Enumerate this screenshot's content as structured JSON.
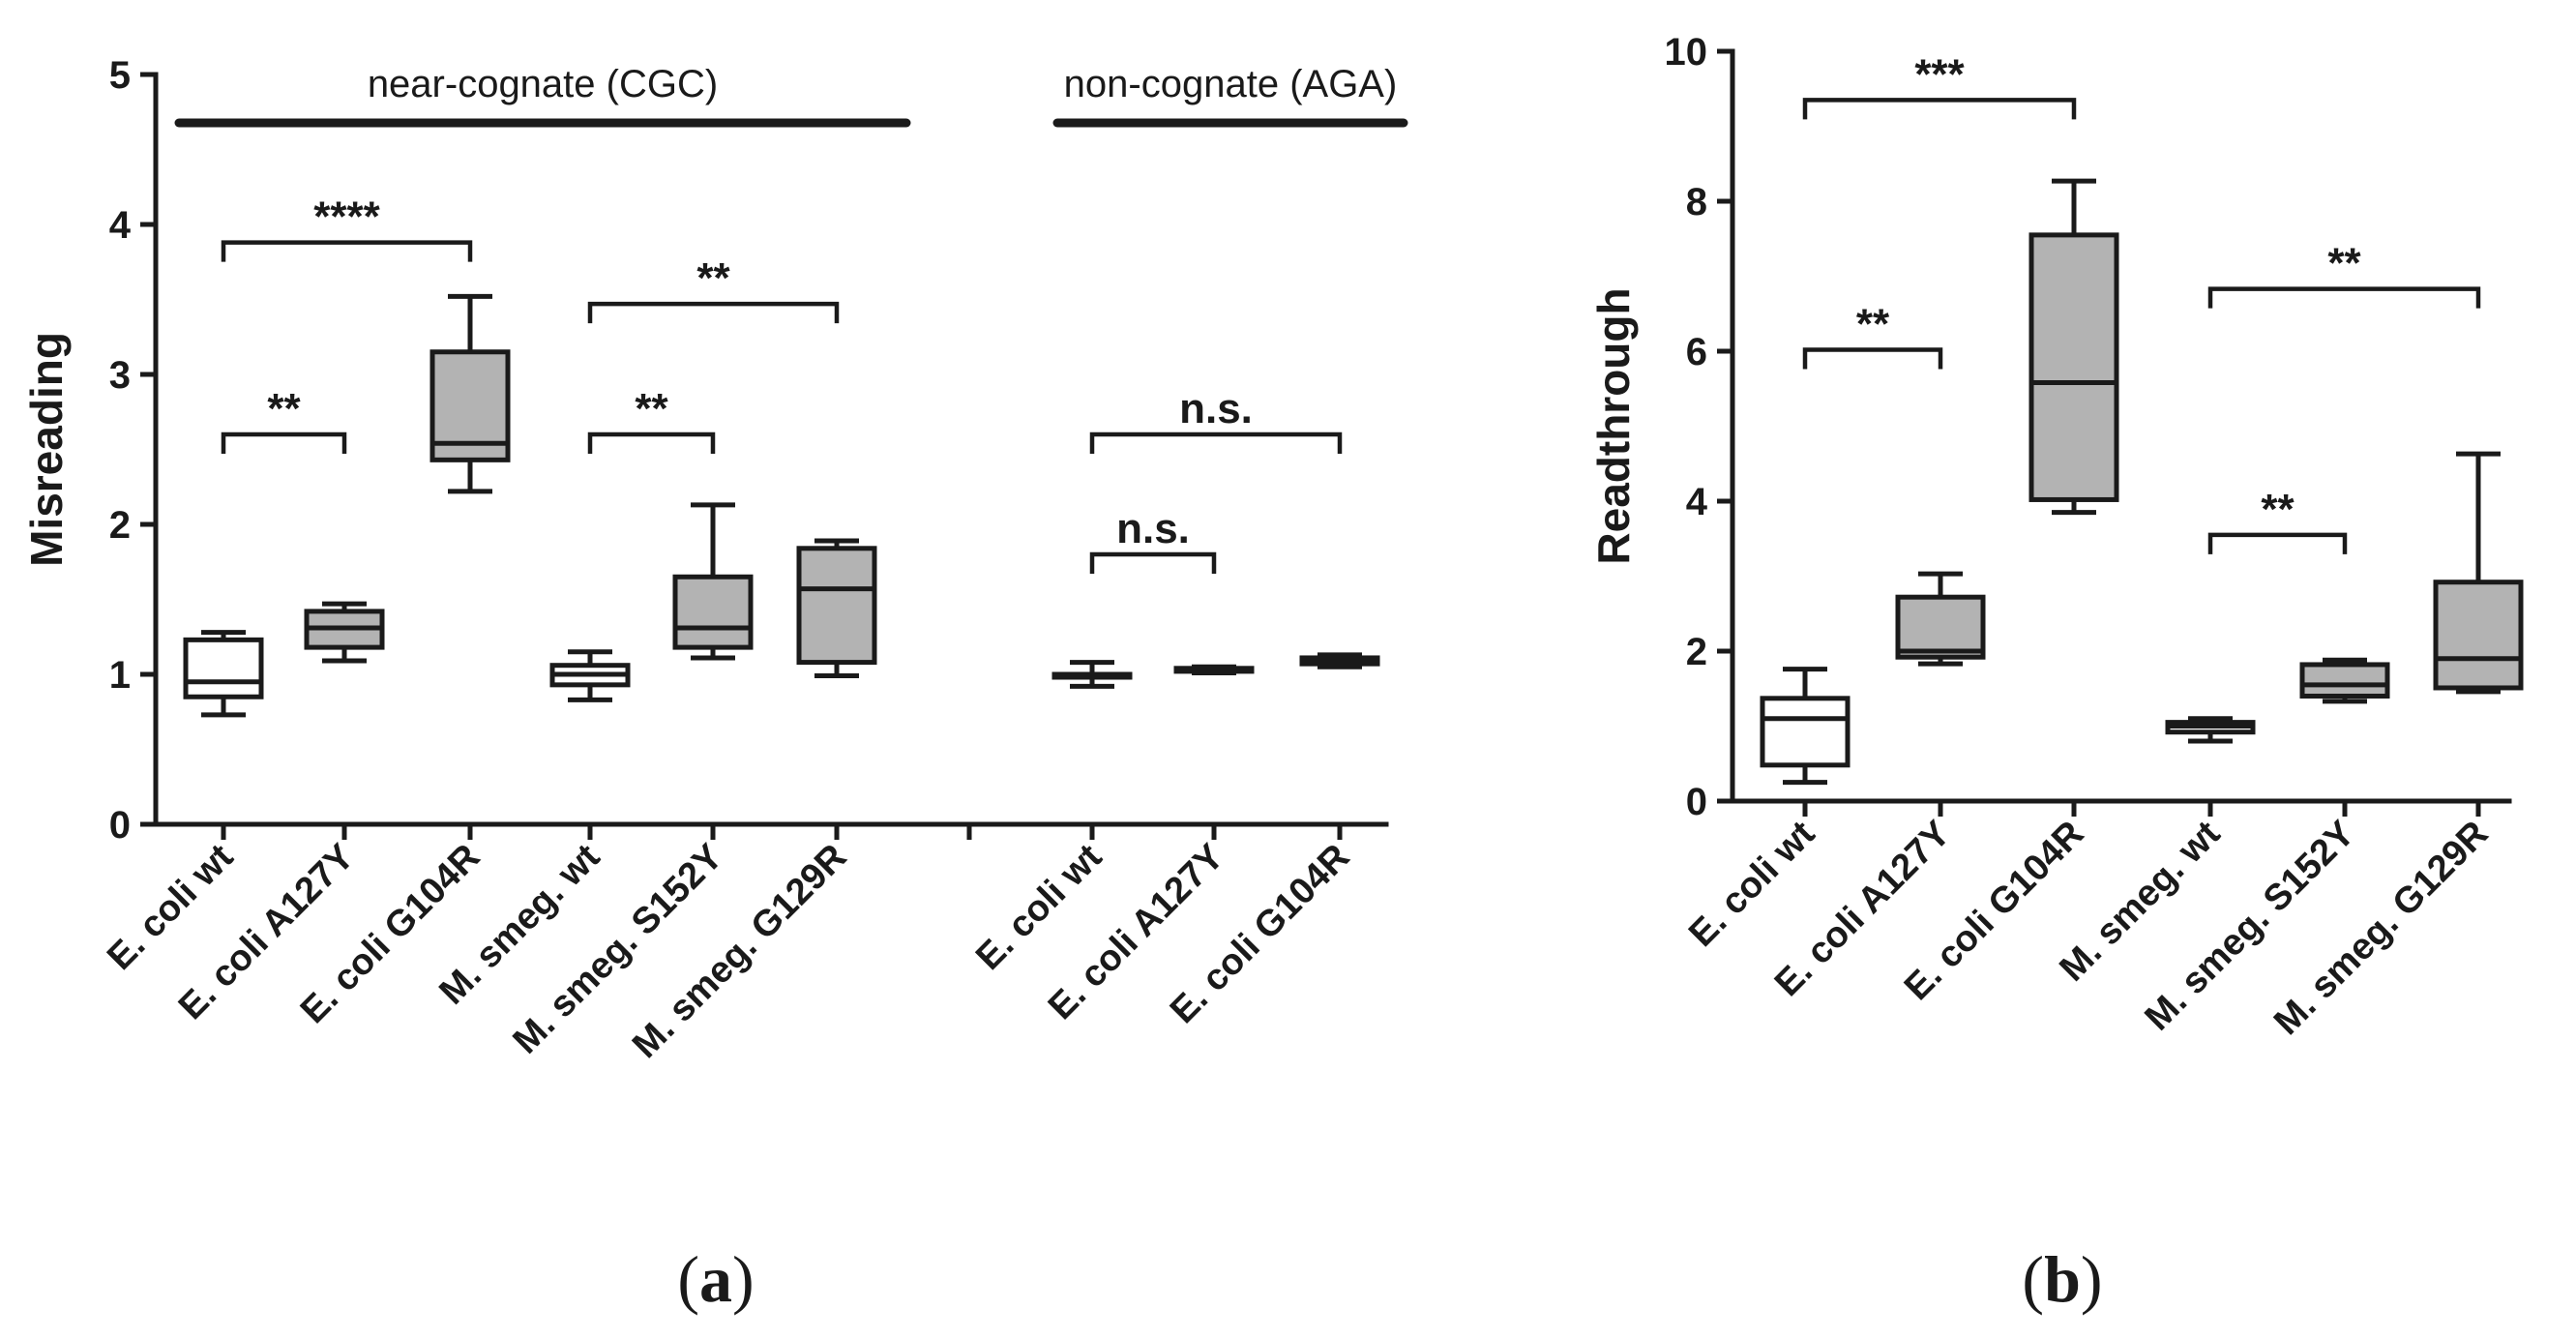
{
  "chart_data": [
    {
      "id": "a",
      "type": "box",
      "panel_label": {
        "open": "(",
        "letter": "a",
        "close": ")"
      },
      "ylabel": "Misreading",
      "ylim": [
        0,
        5
      ],
      "yticks": [
        "0",
        "1",
        "2",
        "3",
        "4",
        "5"
      ],
      "box_colors": {
        "white": "#ffffff",
        "gray": "#b3b3b3"
      },
      "groups": [
        {
          "label": "near-cognate (CGC)",
          "first": 0,
          "last": 5
        },
        {
          "label": "non-cognate (AGA)",
          "first": 6,
          "last": 8
        }
      ],
      "categories": [
        "E. coli wt",
        "E. coli A127Y",
        "E. coli G104R",
        "M. smeg. wt",
        "M. smeg. S152Y",
        "M. smeg. G129R",
        "E. coli wt",
        "E. coli A127Y",
        "E. coli G104R"
      ],
      "boxes": [
        {
          "min": 0.73,
          "q1": 0.85,
          "median": 0.95,
          "q3": 1.23,
          "max": 1.28,
          "fill": "white"
        },
        {
          "min": 1.09,
          "q1": 1.18,
          "median": 1.31,
          "q3": 1.42,
          "max": 1.47,
          "fill": "gray"
        },
        {
          "min": 2.22,
          "q1": 2.43,
          "median": 2.54,
          "q3": 3.15,
          "max": 3.52,
          "fill": "gray"
        },
        {
          "min": 0.83,
          "q1": 0.93,
          "median": 1.0,
          "q3": 1.06,
          "max": 1.15,
          "fill": "white"
        },
        {
          "min": 1.11,
          "q1": 1.18,
          "median": 1.31,
          "q3": 1.65,
          "max": 2.13,
          "fill": "gray"
        },
        {
          "min": 0.99,
          "q1": 1.08,
          "median": 1.57,
          "q3": 1.84,
          "max": 1.89,
          "fill": "gray"
        },
        {
          "min": 0.92,
          "q1": 1.0,
          "median": 1.0,
          "q3": 1.0,
          "max": 1.08,
          "fill": "white"
        },
        {
          "min": 1.01,
          "q1": 1.02,
          "median": 1.03,
          "q3": 1.04,
          "max": 1.05,
          "fill": "gray"
        },
        {
          "min": 1.05,
          "q1": 1.07,
          "median": 1.09,
          "q3": 1.11,
          "max": 1.13,
          "fill": "gray"
        }
      ],
      "significance": [
        {
          "from": 0,
          "to": 2,
          "y": 3.88,
          "label": "****"
        },
        {
          "from": 0,
          "to": 1,
          "y": 2.6,
          "label": "**"
        },
        {
          "from": 3,
          "to": 5,
          "y": 3.47,
          "label": "**"
        },
        {
          "from": 3,
          "to": 4,
          "y": 2.6,
          "label": "**"
        },
        {
          "from": 6,
          "to": 8,
          "y": 2.6,
          "label": "n.s."
        },
        {
          "from": 6,
          "to": 7,
          "y": 1.8,
          "label": "n.s."
        }
      ]
    },
    {
      "id": "b",
      "type": "box",
      "panel_label": {
        "open": "(",
        "letter": "b",
        "close": ")"
      },
      "ylabel": "Readthrough",
      "ylim": [
        0,
        10
      ],
      "yticks": [
        "0",
        "2",
        "4",
        "6",
        "8",
        "10"
      ],
      "box_colors": {
        "white": "#ffffff",
        "gray": "#b3b3b3"
      },
      "groups": [],
      "categories": [
        "E. coli wt",
        "E. coli A127Y",
        "E. coli G104R",
        "M. smeg. wt",
        "M. smeg. S152Y",
        "M. smeg. G129R"
      ],
      "boxes": [
        {
          "min": 0.25,
          "q1": 0.48,
          "median": 1.1,
          "q3": 1.37,
          "max": 1.76,
          "fill": "white"
        },
        {
          "min": 1.83,
          "q1": 1.92,
          "median": 2.0,
          "q3": 2.72,
          "max": 3.03,
          "fill": "gray"
        },
        {
          "min": 3.85,
          "q1": 4.02,
          "median": 5.58,
          "q3": 7.55,
          "max": 8.27,
          "fill": "gray"
        },
        {
          "min": 0.8,
          "q1": 0.92,
          "median": 1.0,
          "q3": 1.05,
          "max": 1.1,
          "fill": "white"
        },
        {
          "min": 1.33,
          "q1": 1.4,
          "median": 1.55,
          "q3": 1.82,
          "max": 1.88,
          "fill": "gray"
        },
        {
          "min": 1.46,
          "q1": 1.51,
          "median": 1.9,
          "q3": 2.92,
          "max": 4.63,
          "fill": "gray"
        }
      ],
      "significance": [
        {
          "from": 0,
          "to": 2,
          "y": 9.35,
          "label": "***"
        },
        {
          "from": 0,
          "to": 1,
          "y": 6.02,
          "label": "**"
        },
        {
          "from": 3,
          "to": 5,
          "y": 6.83,
          "label": "**"
        },
        {
          "from": 3,
          "to": 4,
          "y": 3.55,
          "label": "**"
        }
      ]
    }
  ]
}
